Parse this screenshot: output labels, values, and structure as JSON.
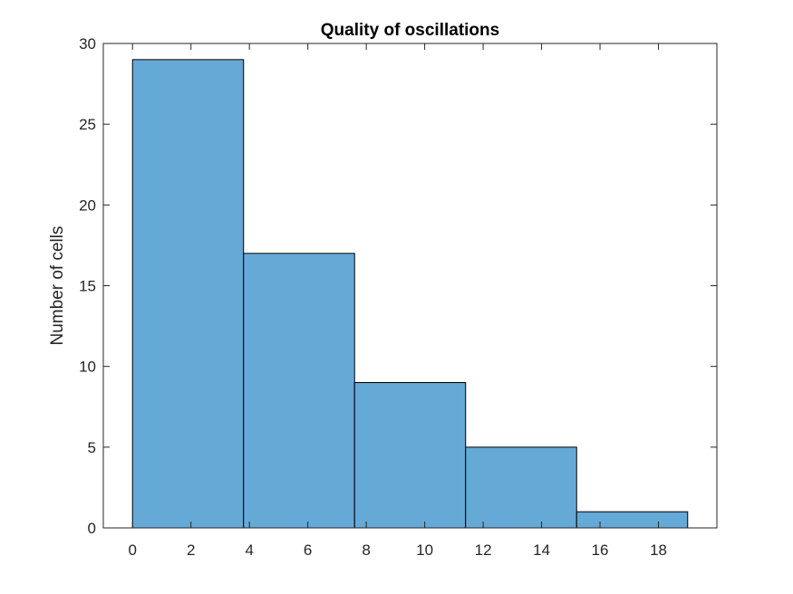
{
  "chart_data": {
    "type": "bar",
    "subtype": "histogram",
    "title": "Quality of oscillations",
    "xlabel": "",
    "ylabel": "Number of cells",
    "bin_edges": [
      0,
      3.8,
      7.6,
      11.4,
      15.2,
      19
    ],
    "values": [
      29,
      17,
      9,
      5,
      1
    ],
    "xlim": [
      -1,
      20
    ],
    "ylim": [
      0,
      30
    ],
    "xticks": [
      0,
      2,
      4,
      6,
      8,
      10,
      12,
      14,
      16,
      18
    ],
    "yticks": [
      0,
      5,
      10,
      15,
      20,
      25,
      30
    ],
    "grid": false,
    "colors": {
      "bar_fill": "#65A9D7",
      "bar_edge": "#000000",
      "axis": "#262626"
    }
  }
}
